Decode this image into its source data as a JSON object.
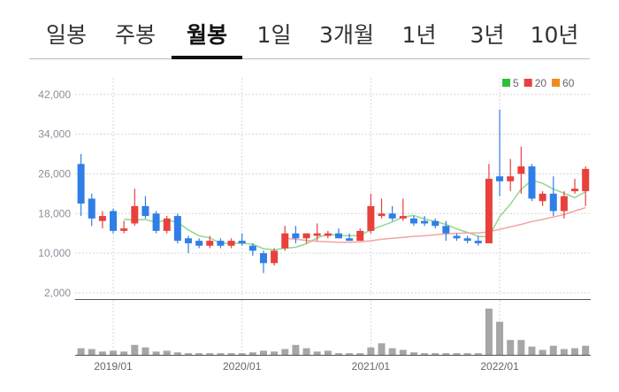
{
  "tabs": [
    "일봉",
    "주봉",
    "월봉",
    "1일",
    "3개월",
    "1년",
    "3년",
    "10년"
  ],
  "active_tab": "월봉",
  "chart_data": {
    "type": "candlestick",
    "categories": [
      null,
      null,
      null,
      "2019/01",
      null,
      null,
      null,
      null,
      null,
      null,
      null,
      null,
      null,
      null,
      null,
      "2020/01",
      null,
      null,
      null,
      null,
      null,
      null,
      null,
      null,
      null,
      null,
      null,
      "2021/01",
      null,
      null,
      null,
      null,
      null,
      null,
      null,
      null,
      null,
      null,
      null,
      "2022/01",
      null,
      null,
      null,
      null,
      null,
      null,
      null,
      null
    ],
    "open": [
      28000,
      21000,
      16500,
      18500,
      14500,
      16000,
      19500,
      18000,
      14500,
      17500,
      13000,
      12500,
      11500,
      12500,
      11500,
      12500,
      11500,
      10000,
      8000,
      11000,
      14000,
      13000,
      13500,
      13500,
      14000,
      13000,
      12500,
      14500,
      17500,
      18000,
      17000,
      17000,
      16500,
      16500,
      15500,
      13500,
      13000,
      12500,
      12000,
      25500,
      24500,
      26000,
      27500,
      20500,
      22000,
      18500,
      22500,
      22500
    ],
    "high": [
      30000,
      22000,
      18500,
      19000,
      16500,
      23000,
      21500,
      18500,
      17500,
      18000,
      13500,
      13000,
      13500,
      13000,
      13000,
      14000,
      12000,
      10500,
      11000,
      15500,
      15500,
      14000,
      16000,
      14500,
      15000,
      14000,
      15000,
      22000,
      21000,
      19500,
      21000,
      17500,
      17500,
      17000,
      16500,
      14000,
      13500,
      13500,
      28000,
      39000,
      29000,
      31500,
      28000,
      22500,
      25500,
      22500,
      25000,
      27500
    ],
    "low": [
      17500,
      15500,
      15000,
      14000,
      14000,
      15500,
      17000,
      14000,
      14000,
      12000,
      10000,
      11000,
      11000,
      11000,
      11000,
      11500,
      9500,
      6000,
      7500,
      10500,
      12000,
      12000,
      12500,
      13000,
      13000,
      12500,
      12500,
      14000,
      17000,
      16500,
      16500,
      15500,
      15500,
      15000,
      12500,
      12500,
      12000,
      11500,
      12000,
      21500,
      22500,
      22000,
      20500,
      19500,
      17500,
      17000,
      22000,
      19500
    ],
    "close": [
      20000,
      17000,
      17500,
      14500,
      15000,
      19500,
      17500,
      14500,
      17000,
      12500,
      12000,
      11500,
      12500,
      11500,
      12500,
      12000,
      10500,
      8000,
      10500,
      14000,
      13000,
      14000,
      14000,
      14000,
      13000,
      12500,
      14500,
      19500,
      18000,
      17000,
      17500,
      16000,
      16000,
      15500,
      14000,
      13000,
      12500,
      12000,
      25000,
      24500,
      25500,
      27500,
      21000,
      22000,
      18500,
      21500,
      23000,
      27000
    ],
    "up_color": "#e8413c",
    "down_color": "#2f7fe6",
    "series": [
      {
        "name": "5",
        "color": "#2fbf3a",
        "line_color": "#8fd98f",
        "values": [
          null,
          null,
          null,
          null,
          16800,
          16700,
          16800,
          16200,
          16700,
          16200,
          14700,
          13500,
          13100,
          12000,
          12000,
          12000,
          11800,
          10900,
          10700,
          11000,
          11200,
          11900,
          13100,
          13800,
          13600,
          13500,
          13600,
          14700,
          15500,
          16300,
          17300,
          17600,
          16900,
          16400,
          15800,
          14900,
          14200,
          13400,
          13300,
          17400,
          19900,
          22900,
          24700,
          24100,
          22900,
          22100,
          21200,
          22400
        ]
      },
      {
        "name": "20",
        "color": "#e8413c",
        "line_color": "#f2a5a2",
        "values": [
          null,
          null,
          null,
          null,
          null,
          null,
          null,
          null,
          null,
          null,
          null,
          null,
          null,
          null,
          null,
          null,
          null,
          null,
          null,
          13000,
          12800,
          12600,
          12400,
          12300,
          12200,
          12200,
          12300,
          12500,
          12800,
          13000,
          13200,
          13400,
          13500,
          13700,
          13900,
          14000,
          14100,
          14100,
          14300,
          14800,
          15300,
          15800,
          16400,
          16800,
          17300,
          17800,
          18500,
          19200
        ]
      },
      {
        "name": "60",
        "color": "#f08a1c",
        "line_color": "#f5b873",
        "values": [
          null,
          null,
          null,
          null,
          null,
          null,
          null,
          null,
          null,
          null,
          null,
          null,
          null,
          null,
          null,
          null,
          null,
          null,
          null,
          null,
          null,
          null,
          null,
          null,
          null,
          null,
          null,
          null,
          null,
          null,
          null,
          null,
          null,
          null,
          null,
          null,
          null,
          null,
          null,
          null,
          null,
          null,
          null,
          null,
          null,
          null,
          null,
          null
        ]
      }
    ],
    "ylim": [
      1600,
      45000
    ],
    "yticks": [
      {
        "value": 2000,
        "label": "2,000"
      },
      {
        "value": 10000,
        "label": "10,000"
      },
      {
        "value": 18000,
        "label": "18,000"
      },
      {
        "value": 26000,
        "label": "26,000"
      },
      {
        "value": 34000,
        "label": "34,000"
      },
      {
        "value": 42000,
        "label": "42,000"
      }
    ],
    "grid": true,
    "legend": "top-right",
    "volume": {
      "color": "#a6a6a6",
      "ylim": [
        0,
        60
      ],
      "values": [
        8,
        7,
        4,
        5,
        4,
        12,
        9,
        4,
        5,
        3,
        2,
        2,
        2,
        2,
        2,
        2,
        3,
        5,
        4,
        7,
        12,
        8,
        4,
        5,
        2,
        2,
        2,
        9,
        14,
        8,
        6,
        3,
        2,
        2,
        2,
        2,
        2,
        2,
        56,
        40,
        18,
        18,
        10,
        6,
        11,
        7,
        8,
        11
      ]
    }
  }
}
